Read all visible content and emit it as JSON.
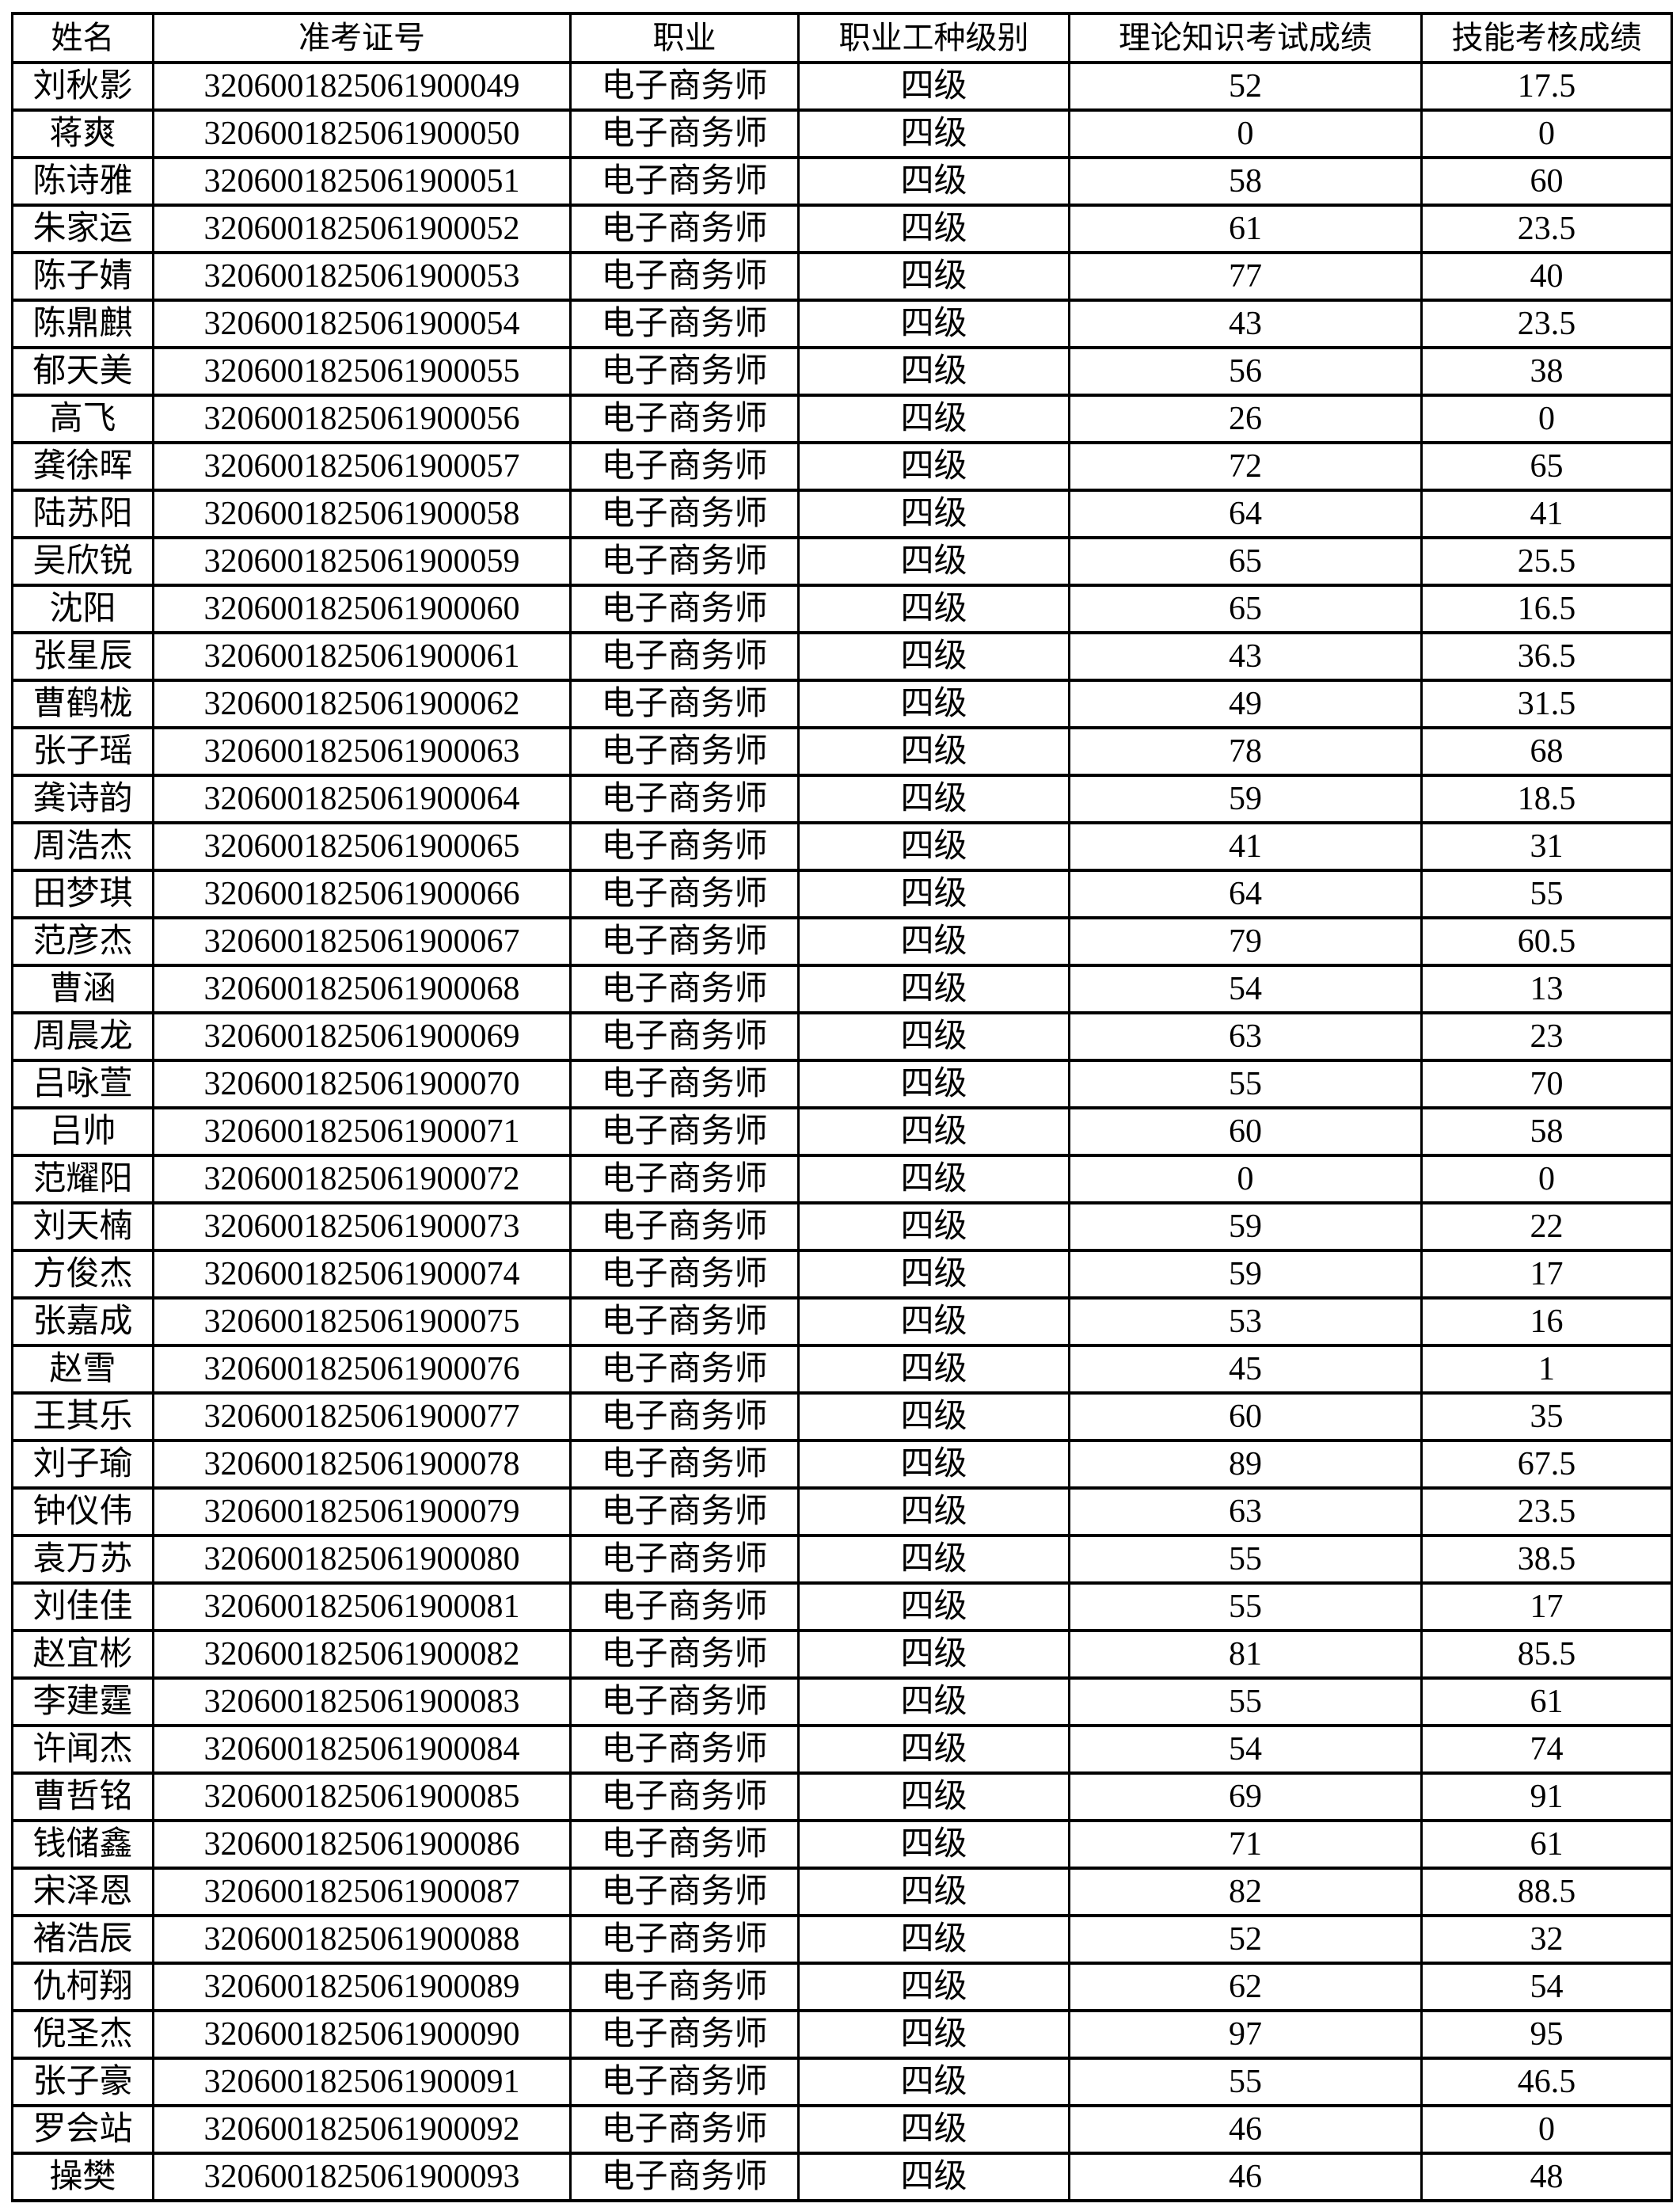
{
  "page": {
    "background_color": "#ffffff",
    "text_color": "#000000",
    "border_color": "#000000"
  },
  "table": {
    "headers": [
      "姓名",
      "准考证号",
      "职业",
      "职业工种级别",
      "理论知识考试成绩",
      "技能考核成绩"
    ],
    "rows": [
      {
        "name": "刘秋影",
        "ticket": "3206001825061900049",
        "occupation": "电子商务师",
        "level": "四级",
        "theory": "52",
        "skill": "17.5"
      },
      {
        "name": "蒋爽",
        "ticket": "3206001825061900050",
        "occupation": "电子商务师",
        "level": "四级",
        "theory": "0",
        "skill": "0"
      },
      {
        "name": "陈诗雅",
        "ticket": "3206001825061900051",
        "occupation": "电子商务师",
        "level": "四级",
        "theory": "58",
        "skill": "60"
      },
      {
        "name": "朱家运",
        "ticket": "3206001825061900052",
        "occupation": "电子商务师",
        "level": "四级",
        "theory": "61",
        "skill": "23.5"
      },
      {
        "name": "陈子婧",
        "ticket": "3206001825061900053",
        "occupation": "电子商务师",
        "level": "四级",
        "theory": "77",
        "skill": "40"
      },
      {
        "name": "陈鼎麒",
        "ticket": "3206001825061900054",
        "occupation": "电子商务师",
        "level": "四级",
        "theory": "43",
        "skill": "23.5"
      },
      {
        "name": "郁天美",
        "ticket": "3206001825061900055",
        "occupation": "电子商务师",
        "level": "四级",
        "theory": "56",
        "skill": "38"
      },
      {
        "name": "高飞",
        "ticket": "3206001825061900056",
        "occupation": "电子商务师",
        "level": "四级",
        "theory": "26",
        "skill": "0"
      },
      {
        "name": "龚徐晖",
        "ticket": "3206001825061900057",
        "occupation": "电子商务师",
        "level": "四级",
        "theory": "72",
        "skill": "65"
      },
      {
        "name": "陆苏阳",
        "ticket": "3206001825061900058",
        "occupation": "电子商务师",
        "level": "四级",
        "theory": "64",
        "skill": "41"
      },
      {
        "name": "吴欣锐",
        "ticket": "3206001825061900059",
        "occupation": "电子商务师",
        "level": "四级",
        "theory": "65",
        "skill": "25.5"
      },
      {
        "name": "沈阳",
        "ticket": "3206001825061900060",
        "occupation": "电子商务师",
        "level": "四级",
        "theory": "65",
        "skill": "16.5"
      },
      {
        "name": "张星辰",
        "ticket": "3206001825061900061",
        "occupation": "电子商务师",
        "level": "四级",
        "theory": "43",
        "skill": "36.5"
      },
      {
        "name": "曹鹤栊",
        "ticket": "3206001825061900062",
        "occupation": "电子商务师",
        "level": "四级",
        "theory": "49",
        "skill": "31.5"
      },
      {
        "name": "张子瑶",
        "ticket": "3206001825061900063",
        "occupation": "电子商务师",
        "level": "四级",
        "theory": "78",
        "skill": "68"
      },
      {
        "name": "龚诗韵",
        "ticket": "3206001825061900064",
        "occupation": "电子商务师",
        "level": "四级",
        "theory": "59",
        "skill": "18.5"
      },
      {
        "name": "周浩杰",
        "ticket": "3206001825061900065",
        "occupation": "电子商务师",
        "level": "四级",
        "theory": "41",
        "skill": "31"
      },
      {
        "name": "田梦琪",
        "ticket": "3206001825061900066",
        "occupation": "电子商务师",
        "level": "四级",
        "theory": "64",
        "skill": "55"
      },
      {
        "name": "范彦杰",
        "ticket": "3206001825061900067",
        "occupation": "电子商务师",
        "level": "四级",
        "theory": "79",
        "skill": "60.5"
      },
      {
        "name": "曹涵",
        "ticket": "3206001825061900068",
        "occupation": "电子商务师",
        "level": "四级",
        "theory": "54",
        "skill": "13"
      },
      {
        "name": "周晨龙",
        "ticket": "3206001825061900069",
        "occupation": "电子商务师",
        "level": "四级",
        "theory": "63",
        "skill": "23"
      },
      {
        "name": "吕咏萱",
        "ticket": "3206001825061900070",
        "occupation": "电子商务师",
        "level": "四级",
        "theory": "55",
        "skill": "70"
      },
      {
        "name": "吕帅",
        "ticket": "3206001825061900071",
        "occupation": "电子商务师",
        "level": "四级",
        "theory": "60",
        "skill": "58"
      },
      {
        "name": "范耀阳",
        "ticket": "3206001825061900072",
        "occupation": "电子商务师",
        "level": "四级",
        "theory": "0",
        "skill": "0"
      },
      {
        "name": "刘天楠",
        "ticket": "3206001825061900073",
        "occupation": "电子商务师",
        "level": "四级",
        "theory": "59",
        "skill": "22"
      },
      {
        "name": "方俊杰",
        "ticket": "3206001825061900074",
        "occupation": "电子商务师",
        "level": "四级",
        "theory": "59",
        "skill": "17"
      },
      {
        "name": "张嘉成",
        "ticket": "3206001825061900075",
        "occupation": "电子商务师",
        "level": "四级",
        "theory": "53",
        "skill": "16"
      },
      {
        "name": "赵雪",
        "ticket": "3206001825061900076",
        "occupation": "电子商务师",
        "level": "四级",
        "theory": "45",
        "skill": "1"
      },
      {
        "name": "王其乐",
        "ticket": "3206001825061900077",
        "occupation": "电子商务师",
        "level": "四级",
        "theory": "60",
        "skill": "35"
      },
      {
        "name": "刘子瑜",
        "ticket": "3206001825061900078",
        "occupation": "电子商务师",
        "level": "四级",
        "theory": "89",
        "skill": "67.5"
      },
      {
        "name": "钟仪伟",
        "ticket": "3206001825061900079",
        "occupation": "电子商务师",
        "level": "四级",
        "theory": "63",
        "skill": "23.5"
      },
      {
        "name": "袁万苏",
        "ticket": "3206001825061900080",
        "occupation": "电子商务师",
        "level": "四级",
        "theory": "55",
        "skill": "38.5"
      },
      {
        "name": "刘佳佳",
        "ticket": "3206001825061900081",
        "occupation": "电子商务师",
        "level": "四级",
        "theory": "55",
        "skill": "17"
      },
      {
        "name": "赵宜彬",
        "ticket": "3206001825061900082",
        "occupation": "电子商务师",
        "level": "四级",
        "theory": "81",
        "skill": "85.5"
      },
      {
        "name": "李建霆",
        "ticket": "3206001825061900083",
        "occupation": "电子商务师",
        "level": "四级",
        "theory": "55",
        "skill": "61"
      },
      {
        "name": "许闻杰",
        "ticket": "3206001825061900084",
        "occupation": "电子商务师",
        "level": "四级",
        "theory": "54",
        "skill": "74"
      },
      {
        "name": "曹哲铭",
        "ticket": "3206001825061900085",
        "occupation": "电子商务师",
        "level": "四级",
        "theory": "69",
        "skill": "91"
      },
      {
        "name": "钱储鑫",
        "ticket": "3206001825061900086",
        "occupation": "电子商务师",
        "level": "四级",
        "theory": "71",
        "skill": "61"
      },
      {
        "name": "宋泽恩",
        "ticket": "3206001825061900087",
        "occupation": "电子商务师",
        "level": "四级",
        "theory": "82",
        "skill": "88.5"
      },
      {
        "name": "褚浩辰",
        "ticket": "3206001825061900088",
        "occupation": "电子商务师",
        "level": "四级",
        "theory": "52",
        "skill": "32"
      },
      {
        "name": "仇柯翔",
        "ticket": "3206001825061900089",
        "occupation": "电子商务师",
        "level": "四级",
        "theory": "62",
        "skill": "54"
      },
      {
        "name": "倪圣杰",
        "ticket": "3206001825061900090",
        "occupation": "电子商务师",
        "level": "四级",
        "theory": "97",
        "skill": "95"
      },
      {
        "name": "张子豪",
        "ticket": "3206001825061900091",
        "occupation": "电子商务师",
        "level": "四级",
        "theory": "55",
        "skill": "46.5"
      },
      {
        "name": "罗会站",
        "ticket": "3206001825061900092",
        "occupation": "电子商务师",
        "level": "四级",
        "theory": "46",
        "skill": "0"
      },
      {
        "name": "操樊",
        "ticket": "3206001825061900093",
        "occupation": "电子商务师",
        "level": "四级",
        "theory": "46",
        "skill": "48"
      }
    ]
  }
}
